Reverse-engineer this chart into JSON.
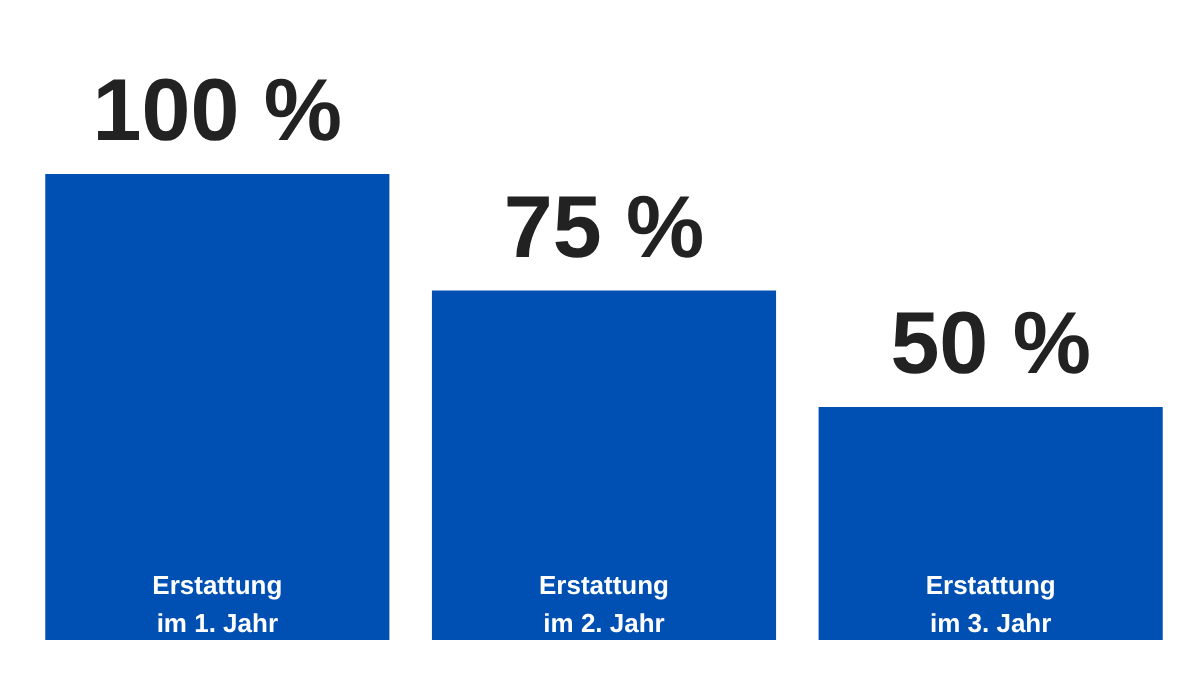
{
  "chart_data": {
    "type": "bar",
    "categories": [
      "Erstattung im 1. Jahr",
      "Erstattung im 2. Jahr",
      "Erstattung im 3. Jahr"
    ],
    "values": [
      100,
      75,
      50
    ],
    "value_labels": [
      "100 %",
      "75 %",
      "50 %"
    ],
    "color": "#0050b4"
  }
}
